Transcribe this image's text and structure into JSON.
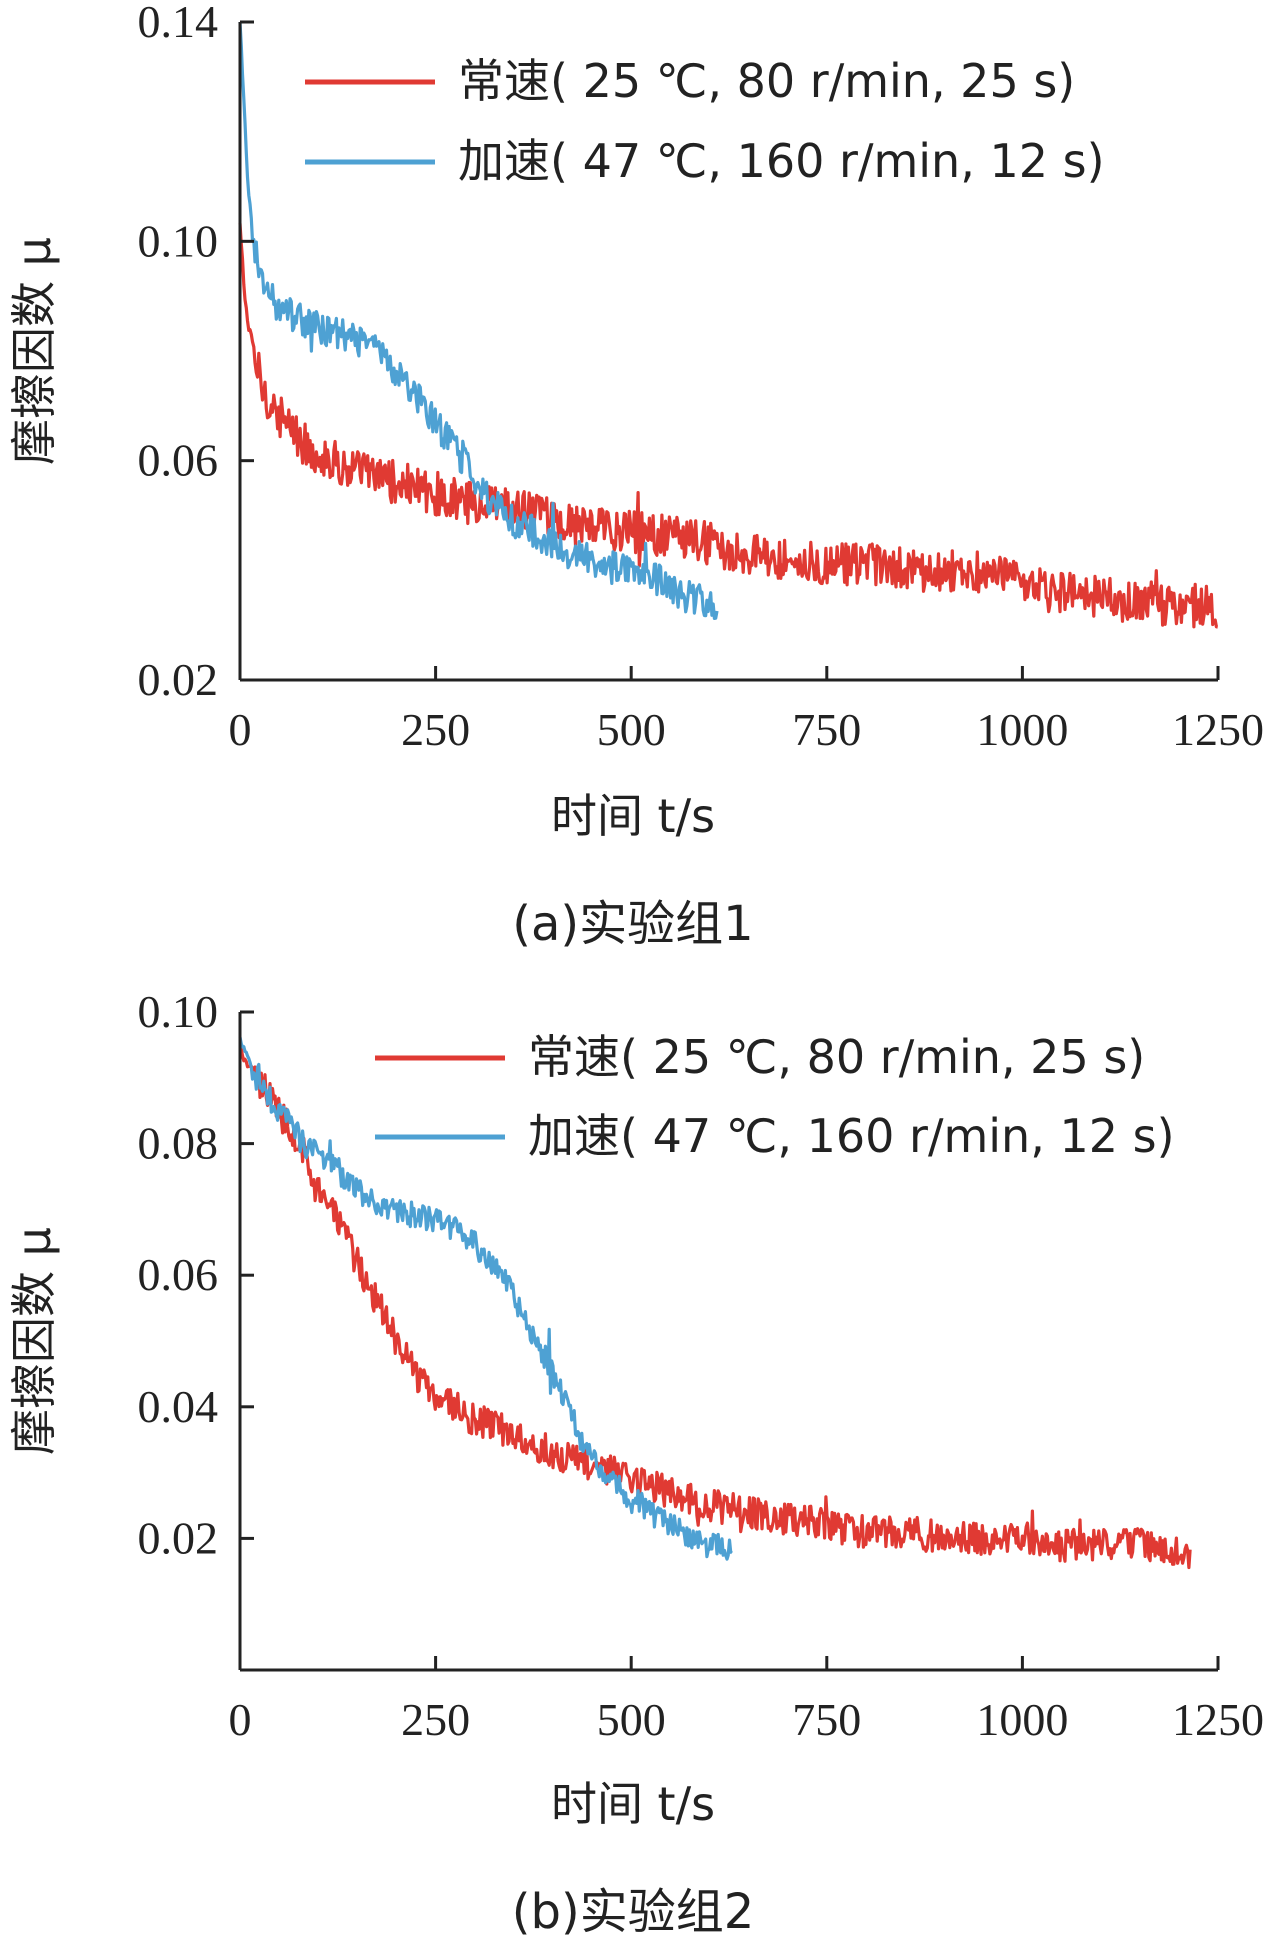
{
  "chart_data": [
    {
      "type": "line",
      "caption": "(a)实验组1",
      "xlabel": "时间 t/s",
      "ylabel": "摩擦因数 μ",
      "xlim": [
        0,
        1250
      ],
      "ylim": [
        0.02,
        0.14
      ],
      "xticks": [
        "0",
        "250",
        "500",
        "750",
        "1000",
        "1250"
      ],
      "yticks": [
        "0.02",
        "0.06",
        "0.10",
        "0.14"
      ],
      "legend_position": "top-right",
      "series": [
        {
          "name": "常速( 25 ℃, 80 r/min, 25 s)",
          "color": "#e03a33",
          "noise": 0.004,
          "x": [
            0,
            5,
            10,
            20,
            30,
            50,
            75,
            100,
            150,
            200,
            250,
            300,
            350,
            400,
            450,
            500,
            550,
            600,
            650,
            700,
            750,
            800,
            850,
            900,
            950,
            1000,
            1050,
            1100,
            1150,
            1200,
            1250
          ],
          "y": [
            0.103,
            0.092,
            0.085,
            0.078,
            0.073,
            0.068,
            0.064,
            0.061,
            0.058,
            0.056,
            0.054,
            0.052,
            0.051,
            0.049,
            0.048,
            0.047,
            0.046,
            0.045,
            0.043,
            0.042,
            0.041,
            0.041,
            0.04,
            0.04,
            0.04,
            0.037,
            0.036,
            0.035,
            0.034,
            0.034,
            0.033
          ]
        },
        {
          "name": "加速( 47 ℃, 160 r/min, 12 s)",
          "color": "#4ea1d3",
          "noise": 0.003,
          "x": [
            0,
            5,
            10,
            20,
            30,
            50,
            75,
            100,
            125,
            150,
            175,
            200,
            225,
            250,
            275,
            300,
            325,
            350,
            375,
            400,
            425,
            450,
            475,
            500,
            525,
            550,
            575,
            610
          ],
          "y": [
            0.14,
            0.125,
            0.11,
            0.098,
            0.092,
            0.088,
            0.086,
            0.084,
            0.083,
            0.082,
            0.08,
            0.076,
            0.072,
            0.067,
            0.062,
            0.057,
            0.052,
            0.049,
            0.047,
            0.045,
            0.043,
            0.042,
            0.041,
            0.04,
            0.039,
            0.037,
            0.035,
            0.034
          ]
        }
      ]
    },
    {
      "type": "line",
      "caption": "(b)实验组2",
      "xlabel": "时间 t/s",
      "ylabel": "摩擦因数 μ",
      "xlim": [
        0,
        1250
      ],
      "ylim": [
        0.0,
        0.1
      ],
      "xticks": [
        "0",
        "250",
        "500",
        "750",
        "1000",
        "1250"
      ],
      "yticks": [
        "0.02",
        "0.04",
        "0.06",
        "0.08",
        "0.10"
      ],
      "legend_position": "top-right",
      "series": [
        {
          "name": "常速( 25 ℃, 80 r/min, 25 s)",
          "color": "#e03a33",
          "noise": 0.0025,
          "x": [
            0,
            25,
            50,
            75,
            100,
            125,
            150,
            175,
            200,
            225,
            250,
            275,
            300,
            350,
            400,
            450,
            500,
            550,
            600,
            650,
            700,
            750,
            800,
            850,
            900,
            950,
            1000,
            1050,
            1100,
            1150,
            1200,
            1215
          ],
          "y": [
            0.094,
            0.089,
            0.085,
            0.08,
            0.074,
            0.068,
            0.062,
            0.056,
            0.05,
            0.045,
            0.042,
            0.04,
            0.038,
            0.036,
            0.033,
            0.031,
            0.029,
            0.027,
            0.025,
            0.024,
            0.023,
            0.022,
            0.021,
            0.021,
            0.02,
            0.02,
            0.02,
            0.019,
            0.019,
            0.019,
            0.018,
            0.018
          ]
        },
        {
          "name": "加速( 47 ℃, 160 r/min, 12 s)",
          "color": "#4ea1d3",
          "noise": 0.002,
          "x": [
            0,
            25,
            50,
            75,
            100,
            125,
            150,
            175,
            200,
            225,
            250,
            275,
            300,
            325,
            350,
            375,
            400,
            425,
            450,
            475,
            500,
            525,
            550,
            575,
            600,
            630
          ],
          "y": [
            0.096,
            0.089,
            0.085,
            0.081,
            0.078,
            0.076,
            0.073,
            0.071,
            0.07,
            0.069,
            0.068,
            0.067,
            0.065,
            0.061,
            0.057,
            0.051,
            0.045,
            0.038,
            0.032,
            0.029,
            0.026,
            0.024,
            0.022,
            0.02,
            0.019,
            0.018
          ]
        }
      ]
    }
  ]
}
